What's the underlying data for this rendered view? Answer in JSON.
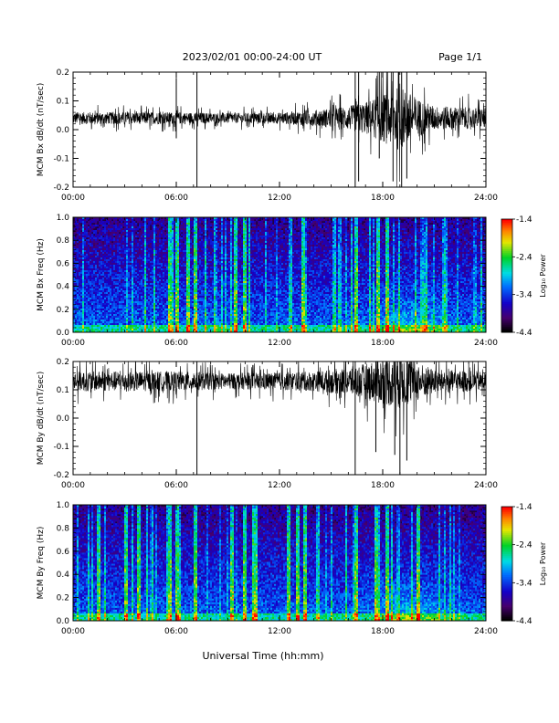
{
  "header": {
    "title": "2023/02/01  00:00-24:00 UT",
    "page": "Page 1/1"
  },
  "footer": {
    "xlabel": "Universal Time (hh:mm)"
  },
  "chart_data": [
    {
      "type": "line",
      "ylabel": "MCM Bx dB/dt (nT/sec)",
      "x_ticks": [
        "00:00",
        "06:00",
        "12:00",
        "18:00",
        "24:00"
      ],
      "xlim": [
        0,
        24
      ],
      "y_ticks": [
        "0.2",
        "0.1",
        "0.0",
        "-0.1",
        "-0.2"
      ],
      "ylim": [
        -0.2,
        0.2
      ],
      "baseline": 0.04,
      "noise_envelope": [
        [
          0,
          0.03
        ],
        [
          6,
          0.03
        ],
        [
          9,
          0.025
        ],
        [
          12,
          0.028
        ],
        [
          14,
          0.04
        ],
        [
          16,
          0.06
        ],
        [
          17,
          0.08
        ],
        [
          18,
          0.12
        ],
        [
          19,
          0.16
        ],
        [
          20,
          0.1
        ],
        [
          21,
          0.06
        ],
        [
          24,
          0.05
        ]
      ],
      "spikes": [
        [
          6.0,
          0.18,
          -0.03
        ],
        [
          7.2,
          0.2,
          -0.2
        ],
        [
          16.4,
          0.2,
          -0.2
        ],
        [
          16.6,
          0.2,
          -0.18
        ],
        [
          17.8,
          0.2,
          -0.1
        ],
        [
          18.6,
          0.2,
          -0.18
        ],
        [
          19.1,
          0.2,
          -0.2
        ],
        [
          19.4,
          0.2,
          -0.17
        ]
      ]
    },
    {
      "type": "heatmap",
      "ylabel": "MCM Bx Freq (Hz)",
      "x_ticks": [
        "00:00",
        "06:00",
        "12:00",
        "18:00",
        "24:00"
      ],
      "xlim": [
        0,
        24
      ],
      "y_ticks": [
        "1.0",
        "0.8",
        "0.6",
        "0.4",
        "0.2",
        "0.0"
      ],
      "ylim": [
        0,
        1
      ],
      "colorbar": {
        "label": "Log₁₀ Power",
        "ticks": [
          "-1.4",
          "-2.4",
          "-3.4",
          "-4.4"
        ],
        "range": [
          -4.4,
          -1.4
        ]
      },
      "bright_stripes": [
        5.6,
        6.0,
        6.6,
        7.1,
        9.4,
        9.9,
        13.3,
        16.4,
        17.7,
        18.2
      ]
    },
    {
      "type": "line",
      "ylabel": "MCM By dB/dt (nT/sec)",
      "x_ticks": [
        "00:00",
        "06:00",
        "12:00",
        "18:00",
        "24:00"
      ],
      "xlim": [
        0,
        24
      ],
      "y_ticks": [
        "0.2",
        "0.1",
        "0.0",
        "-0.1",
        "-0.2"
      ],
      "ylim": [
        -0.2,
        0.2
      ],
      "baseline": 0.13,
      "noise_envelope": [
        [
          0,
          0.05
        ],
        [
          6,
          0.05
        ],
        [
          9,
          0.04
        ],
        [
          12,
          0.045
        ],
        [
          14,
          0.05
        ],
        [
          16,
          0.07
        ],
        [
          17,
          0.09
        ],
        [
          18,
          0.12
        ],
        [
          19,
          0.14
        ],
        [
          20,
          0.1
        ],
        [
          21,
          0.06
        ],
        [
          24,
          0.05
        ]
      ],
      "spikes": [
        [
          7.2,
          0.2,
          -0.2
        ],
        [
          16.4,
          0.2,
          -0.2
        ],
        [
          17.6,
          0.2,
          -0.12
        ],
        [
          18.7,
          0.2,
          -0.13
        ],
        [
          19.0,
          0.2,
          -0.2
        ],
        [
          19.4,
          0.2,
          -0.15
        ]
      ]
    },
    {
      "type": "heatmap",
      "ylabel": "MCM By Freq (Hz)",
      "x_ticks": [
        "00:00",
        "06:00",
        "12:00",
        "18:00",
        "24:00"
      ],
      "xlim": [
        0,
        24
      ],
      "y_ticks": [
        "1.0",
        "0.8",
        "0.6",
        "0.4",
        "0.2",
        "0.0"
      ],
      "ylim": [
        0,
        1
      ],
      "colorbar": {
        "label": "Log₁₀ Power",
        "ticks": [
          "-1.4",
          "-2.4",
          "-3.4",
          "-4.4"
        ],
        "range": [
          -4.4,
          -1.4
        ]
      },
      "bright_stripes": [
        1.4,
        3.0,
        3.8,
        5.6,
        6.0,
        7.1,
        9.2,
        9.9,
        10.5,
        12.5,
        13.0,
        13.4,
        16.4,
        17.6,
        18.2,
        20.0
      ]
    }
  ]
}
